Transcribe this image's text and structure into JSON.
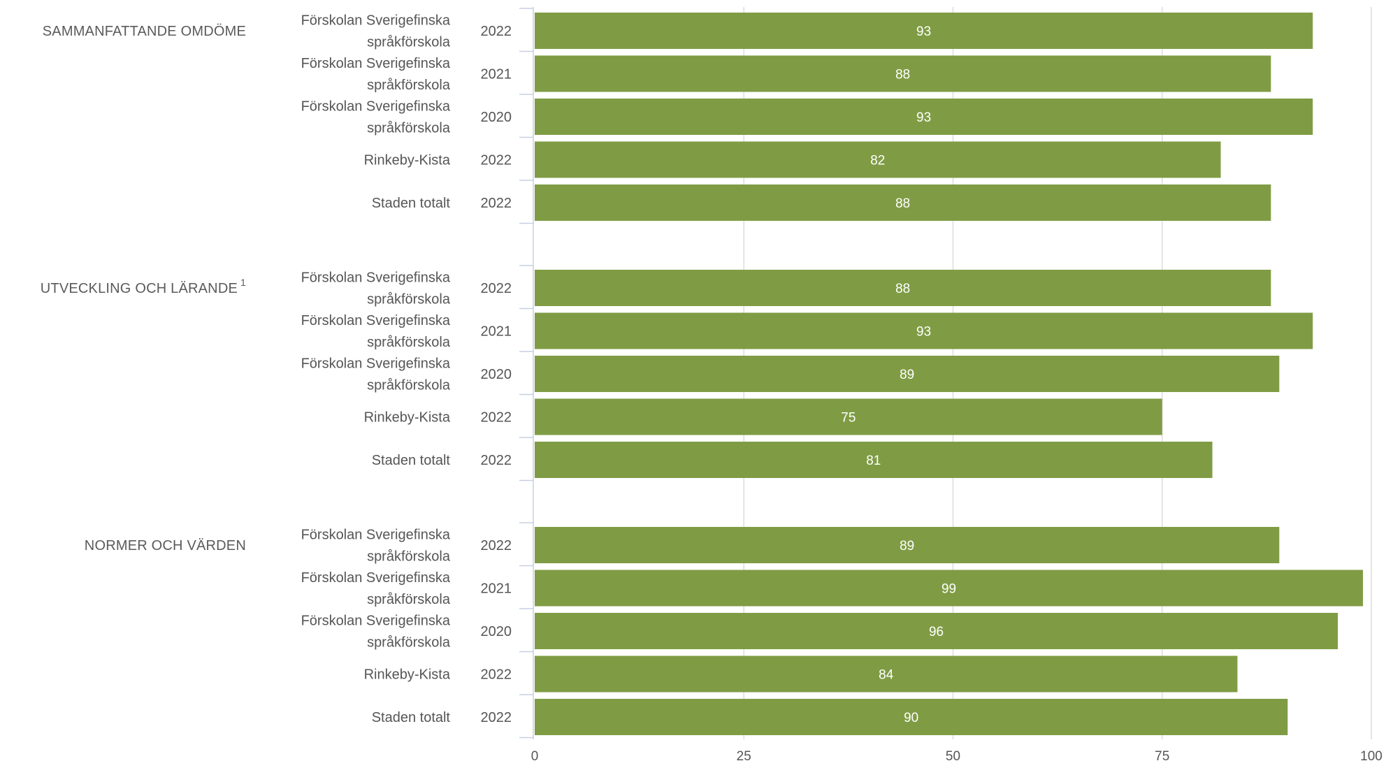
{
  "colors": {
    "bar": "#7f9c44",
    "grid": "#dcdcdc",
    "axis": "#c7cfdf",
    "text": "#555555",
    "value_text": "#ffffff"
  },
  "chart_data": {
    "type": "bar",
    "orientation": "horizontal",
    "xlim": [
      0,
      100
    ],
    "xticks": [
      0,
      25,
      50,
      75,
      100
    ],
    "grid": true,
    "groups": [
      {
        "label": "SAMMANFATTANDE OMDÖME",
        "superscript": "",
        "bars": [
          {
            "entity": [
              "Förskolan Sverigefinska",
              "språkförskola"
            ],
            "year": "2022",
            "value": 93
          },
          {
            "entity": [
              "Förskolan Sverigefinska",
              "språkförskola"
            ],
            "year": "2021",
            "value": 88
          },
          {
            "entity": [
              "Förskolan Sverigefinska",
              "språkförskola"
            ],
            "year": "2020",
            "value": 93
          },
          {
            "entity": [
              "Rinkeby-Kista"
            ],
            "year": "2022",
            "value": 82
          },
          {
            "entity": [
              "Staden totalt"
            ],
            "year": "2022",
            "value": 88
          }
        ]
      },
      {
        "label": "UTVECKLING OCH LÄRANDE",
        "superscript": "1",
        "bars": [
          {
            "entity": [
              "Förskolan Sverigefinska",
              "språkförskola"
            ],
            "year": "2022",
            "value": 88
          },
          {
            "entity": [
              "Förskolan Sverigefinska",
              "språkförskola"
            ],
            "year": "2021",
            "value": 93
          },
          {
            "entity": [
              "Förskolan Sverigefinska",
              "språkförskola"
            ],
            "year": "2020",
            "value": 89
          },
          {
            "entity": [
              "Rinkeby-Kista"
            ],
            "year": "2022",
            "value": 75
          },
          {
            "entity": [
              "Staden totalt"
            ],
            "year": "2022",
            "value": 81
          }
        ]
      },
      {
        "label": "NORMER OCH VÄRDEN",
        "superscript": "",
        "bars": [
          {
            "entity": [
              "Förskolan Sverigefinska",
              "språkförskola"
            ],
            "year": "2022",
            "value": 89
          },
          {
            "entity": [
              "Förskolan Sverigefinska",
              "språkförskola"
            ],
            "year": "2021",
            "value": 99
          },
          {
            "entity": [
              "Förskolan Sverigefinska",
              "språkförskola"
            ],
            "year": "2020",
            "value": 96
          },
          {
            "entity": [
              "Rinkeby-Kista"
            ],
            "year": "2022",
            "value": 84
          },
          {
            "entity": [
              "Staden totalt"
            ],
            "year": "2022",
            "value": 90
          }
        ]
      }
    ]
  }
}
